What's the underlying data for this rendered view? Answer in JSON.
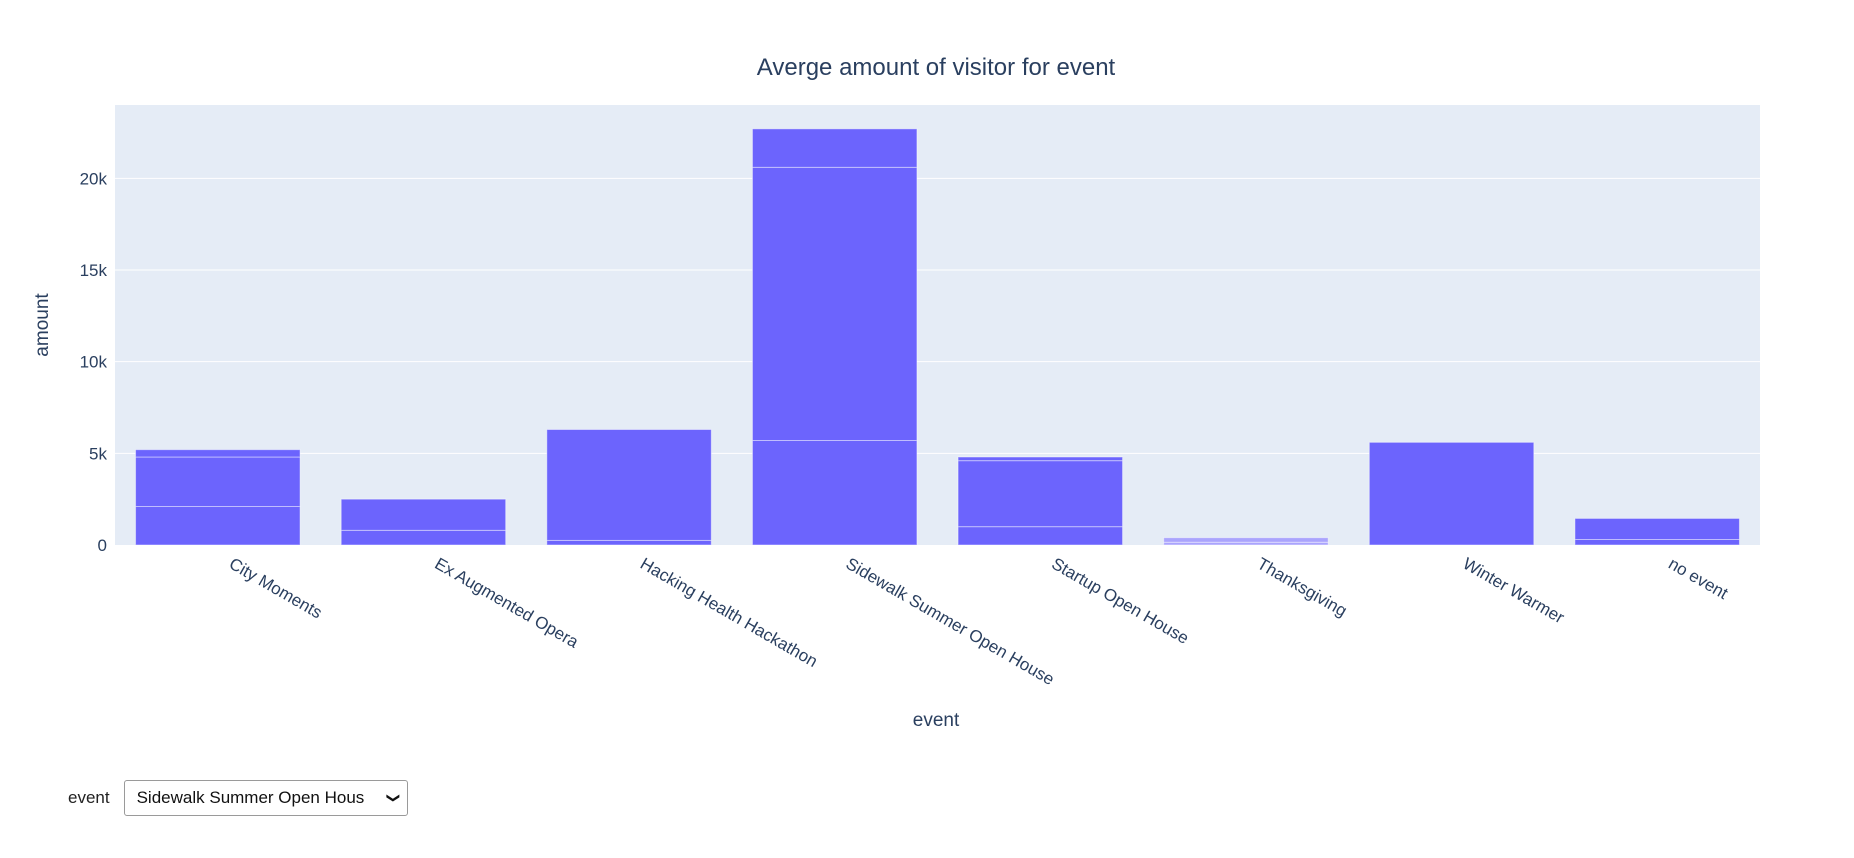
{
  "chart_data": {
    "type": "bar",
    "title": "Averge amount of visitor for event",
    "xlabel": "event",
    "ylabel": "amount",
    "categories": [
      "City Moments",
      "Ex Augmented Opera",
      "Hacking Health Hackathon",
      "Sidewalk Summer Open House",
      "Startup Open House",
      "Thanksgiving",
      "Winter Warmer",
      "no event"
    ],
    "values": [
      5200,
      2500,
      6300,
      22700,
      4800,
      400,
      5600,
      1450
    ],
    "segments": [
      [
        2100,
        2700,
        400
      ],
      [
        800,
        1700
      ],
      [
        250,
        6050
      ],
      [
        5700,
        14900,
        2100
      ],
      [
        1000,
        3600,
        200
      ],
      [
        150,
        250
      ],
      [
        5600
      ],
      [
        300,
        1150
      ]
    ],
    "ylim": [
      0,
      24000
    ],
    "yticks": [
      0,
      5000,
      10000,
      15000,
      20000
    ],
    "ytick_labels": [
      "0",
      "5k",
      "10k",
      "15k",
      "20k"
    ],
    "grid": true,
    "colors": {
      "bar": "#6c64fd",
      "bar_faded": "#aaa4fd",
      "plot_bg": "#e5ecf6",
      "grid": "#ffffff",
      "text": "#2a3f5f"
    }
  },
  "controls": {
    "label": "event",
    "selected": "Sidewalk Summer Open Hous"
  }
}
